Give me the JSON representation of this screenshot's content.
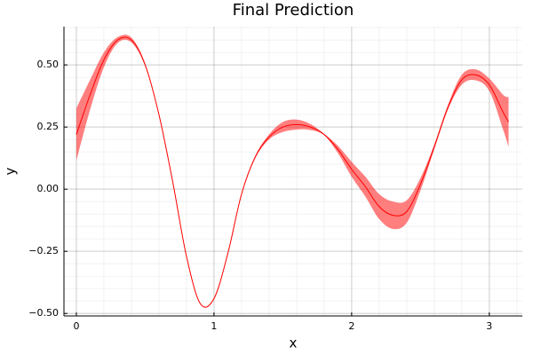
{
  "chart_data": {
    "type": "ribbon-line",
    "title": "Final Prediction",
    "x_label": "x",
    "y_label": "y",
    "x": [
      0,
      0.1,
      0.2,
      0.3,
      0.4,
      0.5,
      0.6,
      0.7,
      0.8,
      0.9,
      1.0,
      1.1,
      1.2,
      1.3,
      1.4,
      1.5,
      1.6,
      1.7,
      1.8,
      1.9,
      2.0,
      2.1,
      2.2,
      2.3,
      2.4,
      2.5,
      2.6,
      2.7,
      2.8,
      2.9,
      3.0,
      3.1,
      3.14
    ],
    "line": {
      "color": "#ff0000",
      "values": [
        0.22,
        0.38,
        0.52,
        0.6,
        0.6,
        0.5,
        0.3,
        0.03,
        -0.27,
        -0.46,
        -0.44,
        -0.26,
        -0.02,
        0.13,
        0.21,
        0.25,
        0.26,
        0.25,
        0.22,
        0.16,
        0.08,
        0.01,
        -0.07,
        -0.105,
        -0.09,
        0.02,
        0.17,
        0.33,
        0.44,
        0.46,
        0.42,
        0.31,
        0.27
      ]
    },
    "band": {
      "color": "#ff0000",
      "opacity": 0.5,
      "lower": [
        0.115,
        0.32,
        0.49,
        0.588,
        0.59,
        0.494,
        0.297,
        0.028,
        -0.272,
        -0.462,
        -0.442,
        -0.262,
        -0.022,
        0.125,
        0.2,
        0.23,
        0.24,
        0.238,
        0.217,
        0.145,
        0.05,
        -0.03,
        -0.12,
        -0.16,
        -0.135,
        -0.005,
        0.16,
        0.32,
        0.42,
        0.438,
        0.395,
        0.24,
        0.17
      ],
      "upper": [
        0.325,
        0.44,
        0.55,
        0.612,
        0.61,
        0.506,
        0.303,
        0.032,
        -0.268,
        -0.458,
        -0.438,
        -0.258,
        -0.018,
        0.135,
        0.22,
        0.27,
        0.28,
        0.262,
        0.223,
        0.175,
        0.11,
        0.05,
        -0.02,
        -0.05,
        -0.045,
        0.045,
        0.18,
        0.34,
        0.46,
        0.482,
        0.445,
        0.38,
        0.37
      ]
    },
    "xlim": [
      -0.09,
      3.24
    ],
    "ylim": [
      -0.51,
      0.654
    ],
    "xticks": [
      0,
      1,
      2,
      3
    ],
    "yticks": [
      {
        "value": -0.5,
        "label": "−0.50"
      },
      {
        "value": -0.25,
        "label": "−0.25"
      },
      {
        "value": 0,
        "label": "0.00"
      },
      0.25,
      {
        "value": 0.5,
        "label": "0.50"
      }
    ],
    "grid": true,
    "minor_grid": 5
  }
}
